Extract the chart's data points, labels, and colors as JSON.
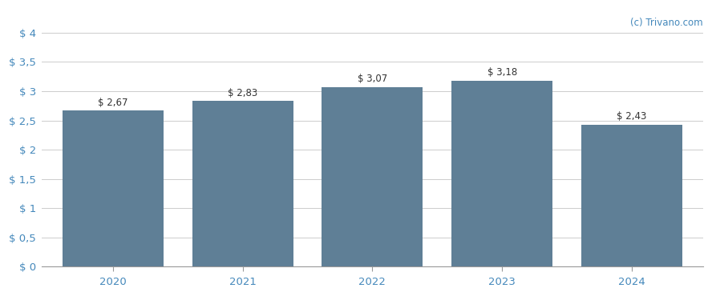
{
  "years": [
    2020,
    2021,
    2022,
    2023,
    2024
  ],
  "values": [
    2.67,
    2.83,
    3.07,
    3.18,
    2.43
  ],
  "bar_color": "#5f7f96",
  "bar_labels": [
    "$ 2,67",
    "$ 2,83",
    "$ 3,07",
    "$ 3,18",
    "$ 2,43"
  ],
  "ylim": [
    0,
    4.0
  ],
  "yticks": [
    0,
    0.5,
    1.0,
    1.5,
    2.0,
    2.5,
    3.0,
    3.5,
    4.0
  ],
  "ytick_labels": [
    "$ 0",
    "$ 0,5",
    "$ 1",
    "$ 1,5",
    "$ 2",
    "$ 2,5",
    "$ 3",
    "$ 3,5",
    "$ 4"
  ],
  "background_color": "#ffffff",
  "grid_color": "#cccccc",
  "watermark": "(c) Trivano.com",
  "bar_label_fontsize": 8.5,
  "tick_fontsize": 9.5,
  "watermark_fontsize": 8.5,
  "watermark_color": "#4488bb",
  "tick_color": "#4488bb",
  "bar_label_color": "#333333"
}
